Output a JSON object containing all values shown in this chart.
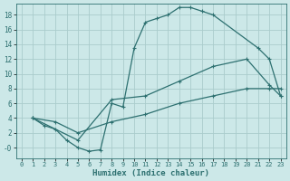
{
  "xlabel": "Humidex (Indice chaleur)",
  "bg_color": "#cce8e8",
  "line_color": "#2d7070",
  "grid_color": "#aacccc",
  "xlim": [
    -0.5,
    23.5
  ],
  "ylim": [
    -1.5,
    19.5
  ],
  "xticks": [
    0,
    1,
    2,
    3,
    4,
    5,
    6,
    7,
    8,
    9,
    10,
    11,
    12,
    13,
    14,
    15,
    16,
    17,
    18,
    19,
    20,
    21,
    22,
    23
  ],
  "yticks": [
    0,
    2,
    4,
    6,
    8,
    10,
    12,
    14,
    16,
    18
  ],
  "curve1_x": [
    1,
    2,
    3,
    4,
    5,
    6,
    7,
    8,
    9,
    10,
    11,
    12,
    13,
    14,
    15,
    16,
    17,
    21,
    22,
    23
  ],
  "curve1_y": [
    4,
    3,
    2.5,
    1,
    0,
    -0.5,
    -0.3,
    6,
    5.5,
    13.5,
    17,
    17.5,
    18,
    19,
    19,
    18.5,
    18,
    13.5,
    12,
    7
  ],
  "curve2_x": [
    1,
    5,
    8,
    11,
    14,
    17,
    20,
    22,
    23
  ],
  "curve2_y": [
    4,
    1,
    6.5,
    7,
    9,
    11,
    12,
    8.5,
    7
  ],
  "curve3_x": [
    1,
    3,
    5,
    8,
    11,
    14,
    17,
    20,
    22,
    23
  ],
  "curve3_y": [
    4,
    3.5,
    2,
    3.5,
    4.5,
    6,
    7,
    8,
    8,
    8
  ],
  "marker": "+",
  "marker_size": 3,
  "lw": 0.9
}
